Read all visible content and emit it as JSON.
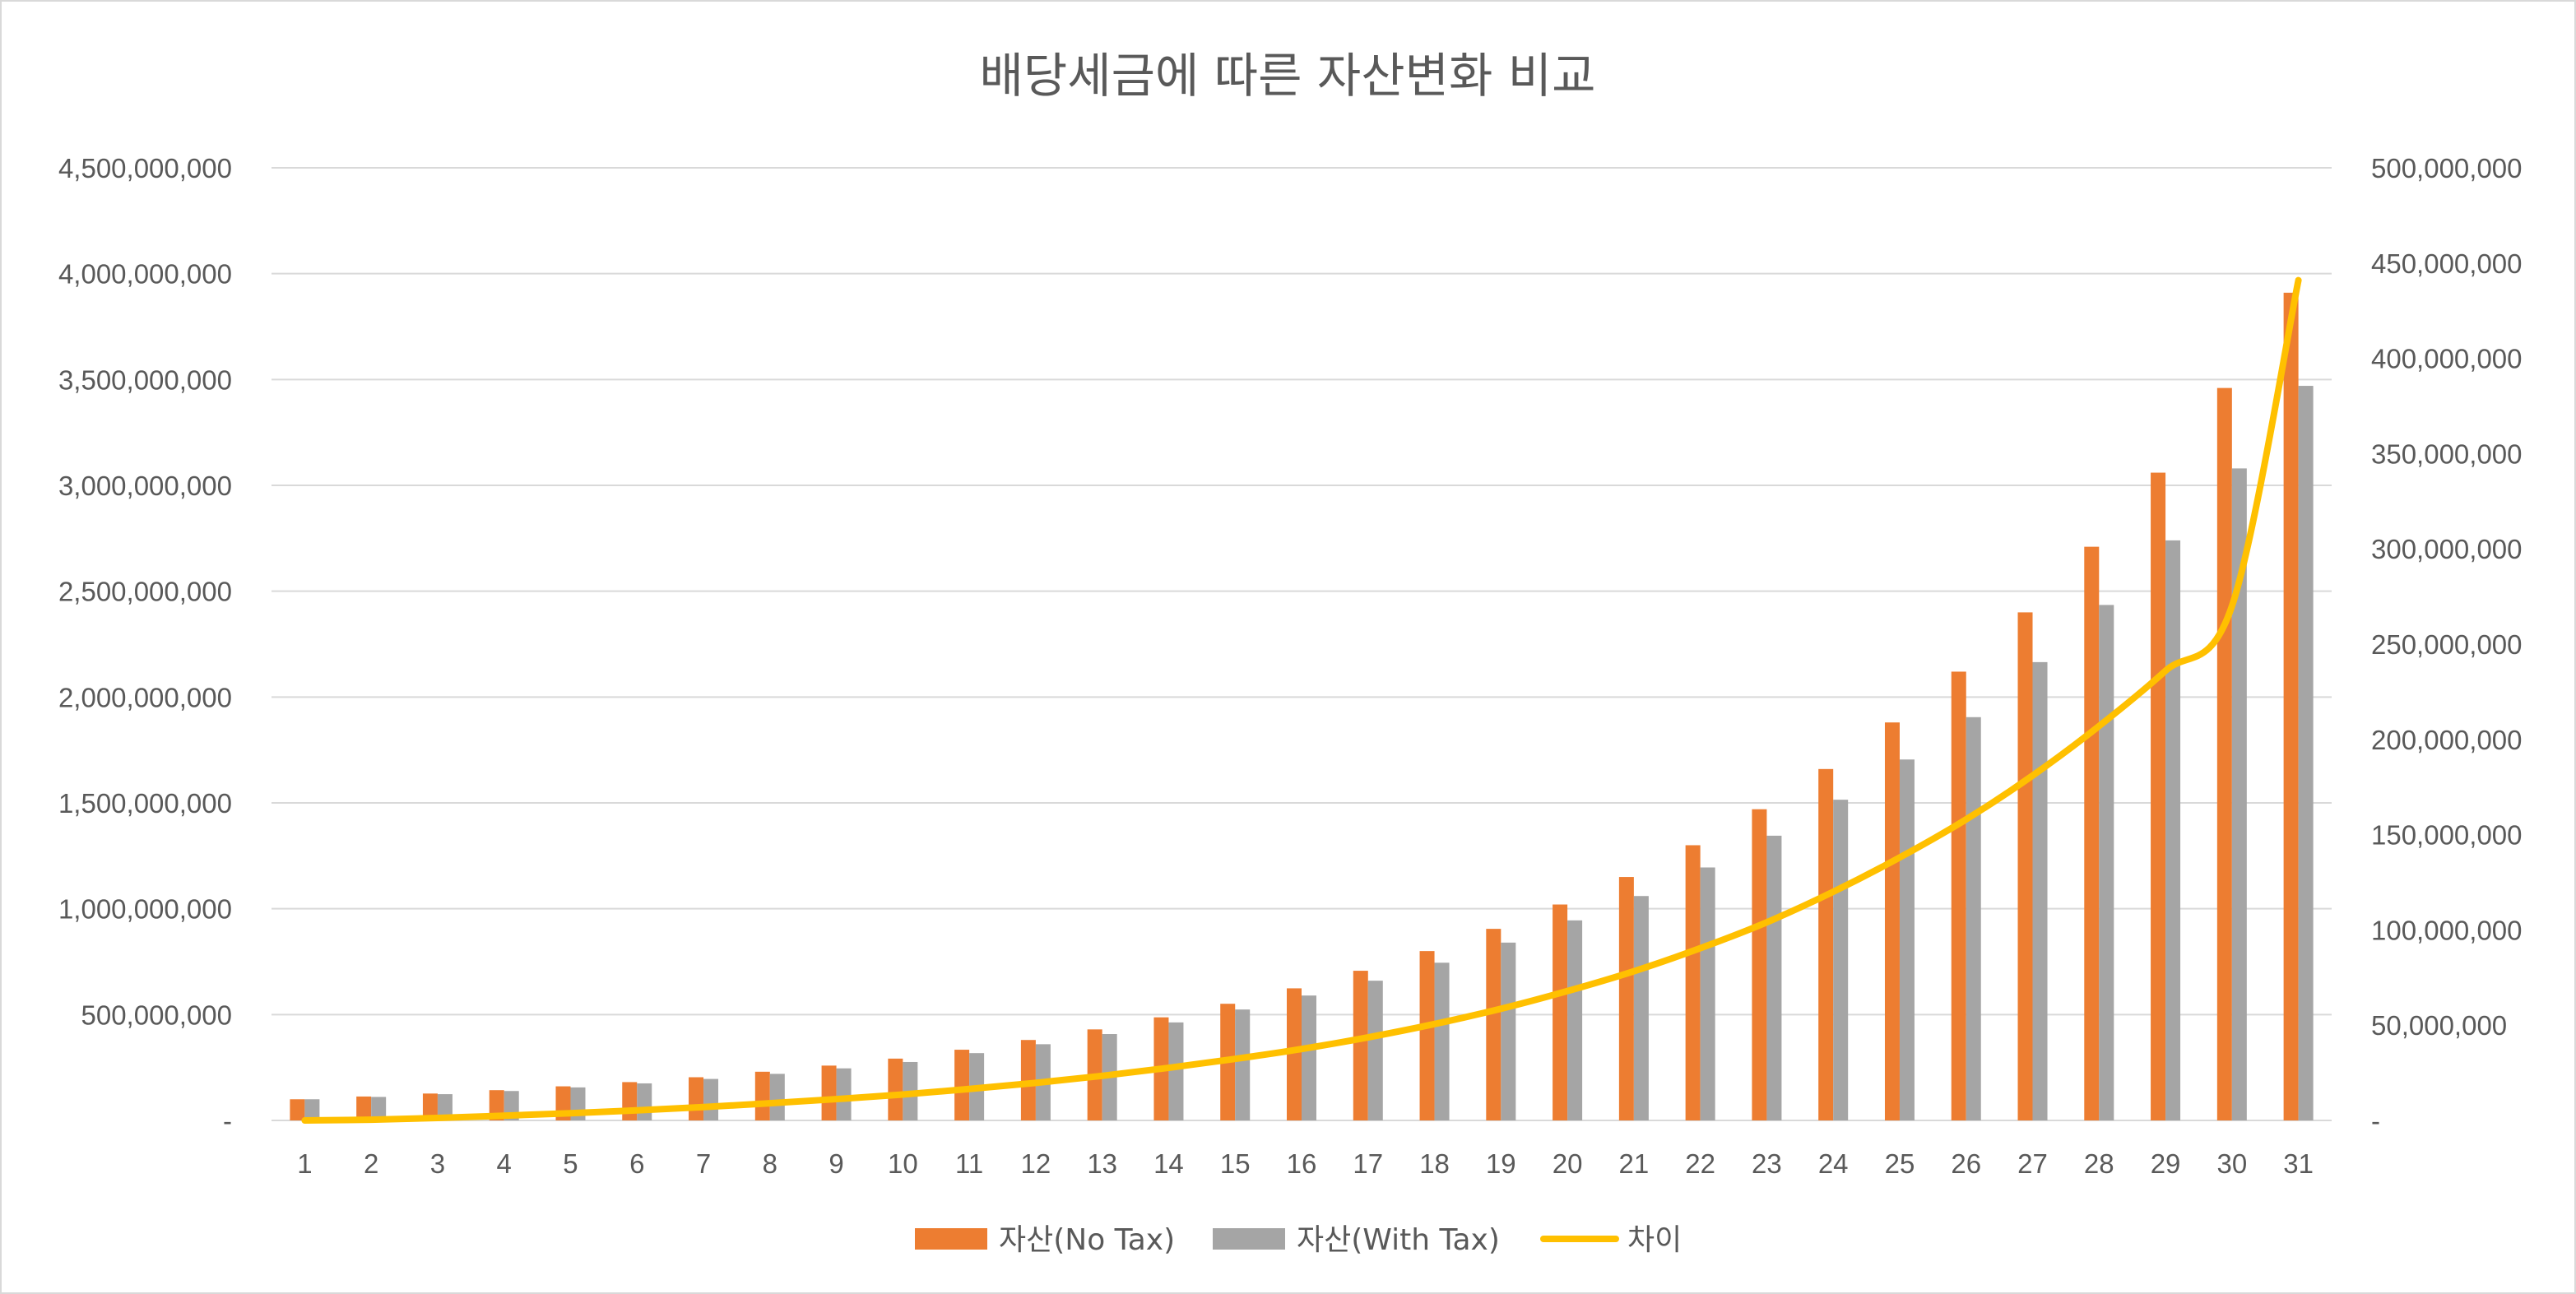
{
  "chart_data": {
    "type": "bar",
    "title": "배당세금에 따른 자산변화 비교",
    "categories": [
      "1",
      "2",
      "3",
      "4",
      "5",
      "6",
      "7",
      "8",
      "9",
      "10",
      "11",
      "12",
      "13",
      "14",
      "15",
      "16",
      "17",
      "18",
      "19",
      "20",
      "21",
      "22",
      "23",
      "24",
      "25",
      "26",
      "27",
      "28",
      "29",
      "30",
      "31"
    ],
    "y_left": {
      "min": 0,
      "max": 4500000000,
      "step": 500000000,
      "tick_labels": [
        "-",
        "500,000,000",
        "1,000,000,000",
        "1,500,000,000",
        "2,000,000,000",
        "2,500,000,000",
        "3,000,000,000",
        "3,500,000,000",
        "4,000,000,000",
        "4,500,000,000"
      ]
    },
    "y_right": {
      "min": 0,
      "max": 500000000,
      "step": 50000000,
      "tick_labels": [
        "-",
        "50,000,000",
        "100,000,000",
        "150,000,000",
        "200,000,000",
        "250,000,000",
        "300,000,000",
        "350,000,000",
        "400,000,000",
        "450,000,000",
        "500,000,000"
      ]
    },
    "grid": true,
    "legend_position": "bottom",
    "series": [
      {
        "name": "자산(No Tax)",
        "type": "bar",
        "axis": "left",
        "color": "#ed7d31",
        "values": [
          100000000,
          113000000,
          127000000,
          143000000,
          161000000,
          181000000,
          204000000,
          230000000,
          259000000,
          292000000,
          334000000,
          380000000,
          430000000,
          487000000,
          551000000,
          624000000,
          707000000,
          800000000,
          905000000,
          1020000000,
          1150000000,
          1300000000,
          1470000000,
          1660000000,
          1880000000,
          2120000000,
          2400000000,
          2710000000,
          3060000000,
          3460000000,
          3910000000
        ]
      },
      {
        "name": "자산(With Tax)",
        "type": "bar",
        "axis": "left",
        "color": "#a5a5a5",
        "values": [
          100000000,
          111000000,
          124000000,
          139000000,
          156000000,
          175000000,
          196000000,
          220000000,
          246000000,
          276000000,
          318000000,
          360000000,
          408000000,
          463000000,
          524000000,
          590000000,
          660000000,
          745000000,
          840000000,
          945000000,
          1060000000,
          1195000000,
          1345000000,
          1515000000,
          1705000000,
          1905000000,
          2165000000,
          2435000000,
          2740000000,
          3080000000,
          3470000000
        ]
      },
      {
        "name": "차이",
        "type": "line",
        "axis": "right",
        "color": "#ffc000",
        "values": [
          0,
          400000,
          1300000,
          2500000,
          3800000,
          5300000,
          7000000,
          9000000,
          11200000,
          13600000,
          16500000,
          19700000,
          23400000,
          27600000,
          32300000,
          37500000,
          43600000,
          50600000,
          58600000,
          67900000,
          78300000,
          90400000,
          104000000,
          120000000,
          138000000,
          158000000,
          181000000,
          207000000,
          236000000,
          270000000,
          441000000
        ]
      }
    ]
  }
}
